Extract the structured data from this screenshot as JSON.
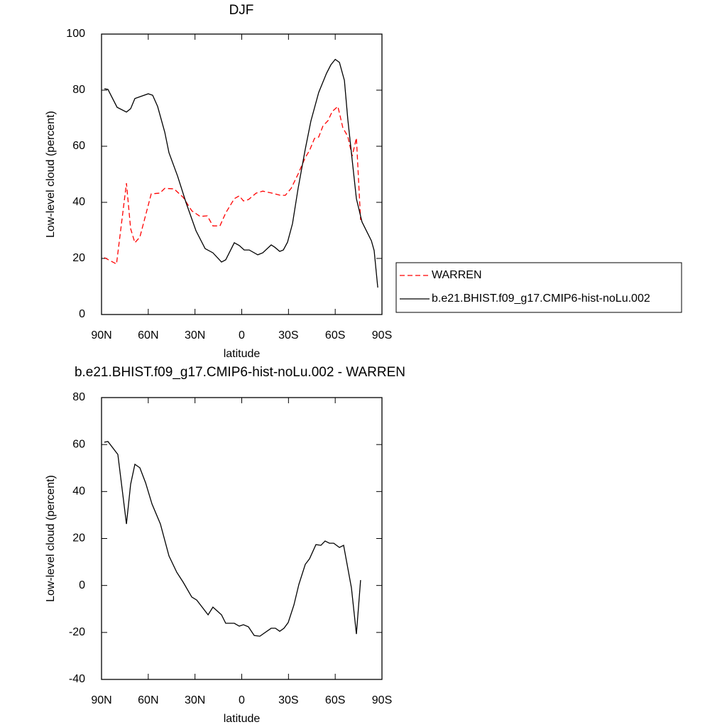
{
  "chart_data": [
    {
      "type": "line",
      "title": "DJF",
      "xlabel": "latitude",
      "ylabel": "Low-level cloud (percent)",
      "xlim": [
        90,
        -90
      ],
      "xticks": [
        {
          "value": 90,
          "label": "90N"
        },
        {
          "value": 60,
          "label": "60N"
        },
        {
          "value": 30,
          "label": "30N"
        },
        0,
        {
          "value": -30,
          "label": "30S"
        },
        {
          "value": -60,
          "label": "60S"
        },
        {
          "value": -90,
          "label": "90S"
        }
      ],
      "ylim": [
        0,
        100
      ],
      "yticks": [
        0,
        20,
        40,
        60,
        80,
        100
      ],
      "grid": false,
      "legend": "right",
      "series": [
        {
          "name": "WARREN",
          "color": "#ff0000",
          "dash": true,
          "x": [
            88.2,
            80.4,
            74,
            71.3,
            68.6,
            65.4,
            58.1,
            52.6,
            49.4,
            43.5,
            37.6,
            32.1,
            26.7,
            22.1,
            18.5,
            14,
            10.3,
            4.8,
            1.6,
            -1.1,
            -4.3,
            -9.3,
            -13.5,
            -19.4,
            -24.8,
            -28,
            -31.7,
            -36.2,
            -40.8,
            -43.5,
            -46.7,
            -49.4,
            -52.2,
            -55.3,
            -58.1,
            -61.7,
            -64.9,
            -68.1,
            -70.9,
            -73.6,
            -76.3
          ],
          "values": [
            20.3,
            18,
            46.8,
            30.6,
            25.6,
            27.6,
            43,
            43.3,
            45,
            44.8,
            41.8,
            37,
            35,
            35.2,
            31.6,
            31.6,
            36.2,
            41.3,
            42.3,
            40.5,
            41,
            43.3,
            44,
            43.3,
            42.5,
            42.5,
            45,
            50.1,
            56,
            58.5,
            62.8,
            63.3,
            67.3,
            69.1,
            72.4,
            74.2,
            66.6,
            63.5,
            56.5,
            63,
            33.7
          ]
        },
        {
          "name": "b.e21.BHIST.f09_g17.CMIP6-hist-noLu.002",
          "color": "#000000",
          "dash": false,
          "x": [
            88.2,
            85.9,
            80,
            74,
            71.3,
            68.6,
            60,
            57.2,
            54,
            49.4,
            46.7,
            41.2,
            35.8,
            29.4,
            23.5,
            18.5,
            13,
            10.3,
            4.8,
            1.6,
            -1.6,
            -4.8,
            -10.3,
            -13.5,
            -18.9,
            -21.2,
            -24.4,
            -26.7,
            -29.4,
            -32.6,
            -36.2,
            -40.8,
            -44.4,
            -49.4,
            -54.4,
            -57.2,
            -60,
            -62.7,
            -65.9,
            -68.1,
            -70.9,
            -73.6,
            -77.2,
            -83.2,
            -85,
            -87.3
          ],
          "values": [
            80.5,
            80.3,
            73.9,
            72.2,
            73.4,
            77,
            78.7,
            78.2,
            74.2,
            65,
            57.7,
            49.4,
            40,
            29.9,
            23.5,
            22,
            18.7,
            19.5,
            25.6,
            24.6,
            23,
            23,
            21.3,
            22,
            24.8,
            24,
            22.5,
            23,
            25.8,
            32.4,
            45,
            59,
            69,
            79.2,
            86,
            89,
            91,
            89.9,
            83.5,
            69.6,
            55,
            41.3,
            33,
            26.3,
            22.8,
            9.6
          ]
        }
      ]
    },
    {
      "type": "line",
      "title": "b.e21.BHIST.f09_g17.CMIP6-hist-noLu.002 - WARREN",
      "xlabel": "latitude",
      "ylabel": "Low-level cloud (percent)",
      "xlim": [
        90,
        -90
      ],
      "xticks": [
        {
          "value": 90,
          "label": "90N"
        },
        {
          "value": 60,
          "label": "60N"
        },
        {
          "value": 30,
          "label": "30N"
        },
        0,
        {
          "value": -30,
          "label": "30S"
        },
        {
          "value": -60,
          "label": "60S"
        },
        {
          "value": -90,
          "label": "90S"
        }
      ],
      "ylim": [
        -40,
        80
      ],
      "yticks": [
        -40,
        -20,
        0,
        20,
        40,
        60,
        80
      ],
      "grid": false,
      "series": [
        {
          "color": "#000000",
          "dash": false,
          "x": [
            88.2,
            85.9,
            79.5,
            74,
            71.3,
            68.6,
            65.4,
            61.7,
            57.6,
            52.2,
            46.7,
            41.7,
            37.6,
            32.1,
            28.9,
            21.6,
            18.5,
            13,
            10.3,
            4.8,
            1.6,
            -1.1,
            -4.3,
            -8,
            -11.6,
            -18.9,
            -21.6,
            -24.4,
            -27.1,
            -29.8,
            -33.5,
            -36.7,
            -40.8,
            -43.5,
            -47.6,
            -50.8,
            -53.5,
            -56.3,
            -59,
            -62.7,
            -65.4,
            -68.1,
            -70.4,
            -73.6,
            -76.3
          ],
          "values": [
            61,
            61.3,
            55.8,
            26.2,
            43.1,
            51.6,
            50.1,
            43.7,
            34.7,
            26.2,
            12.6,
            5.6,
            1.4,
            -4.9,
            -6.2,
            -12.5,
            -9.2,
            -12.5,
            -16.1,
            -16.1,
            -17.3,
            -16.7,
            -17.6,
            -21.3,
            -21.6,
            -18.2,
            -18.2,
            -19.5,
            -18.2,
            -15.8,
            -8.3,
            0.5,
            9,
            11.4,
            17.4,
            17.1,
            18.9,
            18,
            18,
            16.2,
            17.1,
            7.4,
            -1,
            -20.7,
            2.3
          ]
        }
      ]
    }
  ]
}
